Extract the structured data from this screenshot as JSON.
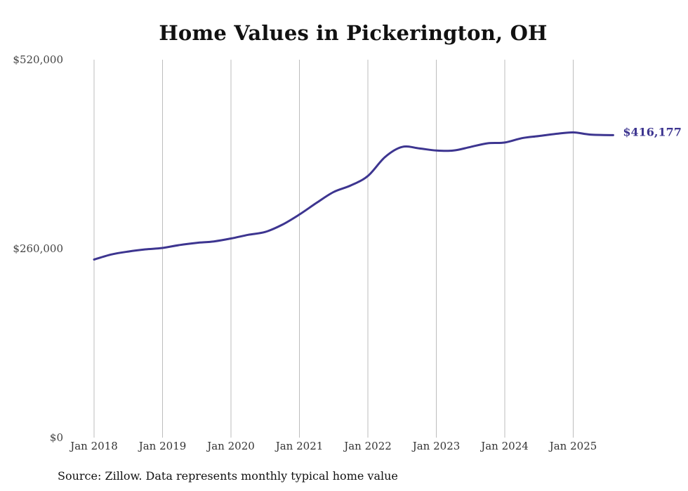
{
  "colors": {
    "line": "#3d3590",
    "grid": "#bdbdbd",
    "background": "#ffffff"
  },
  "chart_data": {
    "type": "line",
    "title": "Home Values in Pickerington, OH",
    "xlabel": "",
    "ylabel": "",
    "ylim": [
      0,
      520000
    ],
    "y_ticks": [
      0,
      260000,
      520000
    ],
    "y_tick_labels": [
      "$0",
      "$260,000",
      "$520,000"
    ],
    "x_range": [
      "2018-01",
      "2025-08"
    ],
    "x_ticks": [
      "2018-01",
      "2019-01",
      "2020-01",
      "2021-01",
      "2022-01",
      "2023-01",
      "2024-01",
      "2025-01"
    ],
    "x_tick_labels": [
      "Jan 2018",
      "Jan 2019",
      "Jan 2020",
      "Jan 2021",
      "Jan 2022",
      "Jan 2023",
      "Jan 2024",
      "Jan 2025"
    ],
    "grid": "vertical",
    "legend": "none",
    "series": [
      {
        "x": [
          "2018-01",
          "2018-04",
          "2018-07",
          "2018-10",
          "2019-01",
          "2019-04",
          "2019-07",
          "2019-10",
          "2020-01",
          "2020-04",
          "2020-07",
          "2020-10",
          "2021-01",
          "2021-04",
          "2021-07",
          "2021-10",
          "2022-01",
          "2022-04",
          "2022-07",
          "2022-10",
          "2023-01",
          "2023-04",
          "2023-07",
          "2023-10",
          "2024-01",
          "2024-04",
          "2024-07",
          "2024-10",
          "2025-01",
          "2025-04",
          "2025-08"
        ],
        "values": [
          245000,
          252000,
          256000,
          259000,
          261000,
          265000,
          268000,
          270000,
          274000,
          279000,
          283000,
          293000,
          307000,
          323000,
          338000,
          347000,
          360000,
          386000,
          400000,
          398000,
          395000,
          395000,
          400000,
          405000,
          406000,
          412000,
          415000,
          418000,
          420000,
          417000,
          416177
        ],
        "end_label": "$416,177"
      }
    ]
  },
  "footer": {
    "source": "Source: Zillow. Data represents monthly typical home value"
  }
}
